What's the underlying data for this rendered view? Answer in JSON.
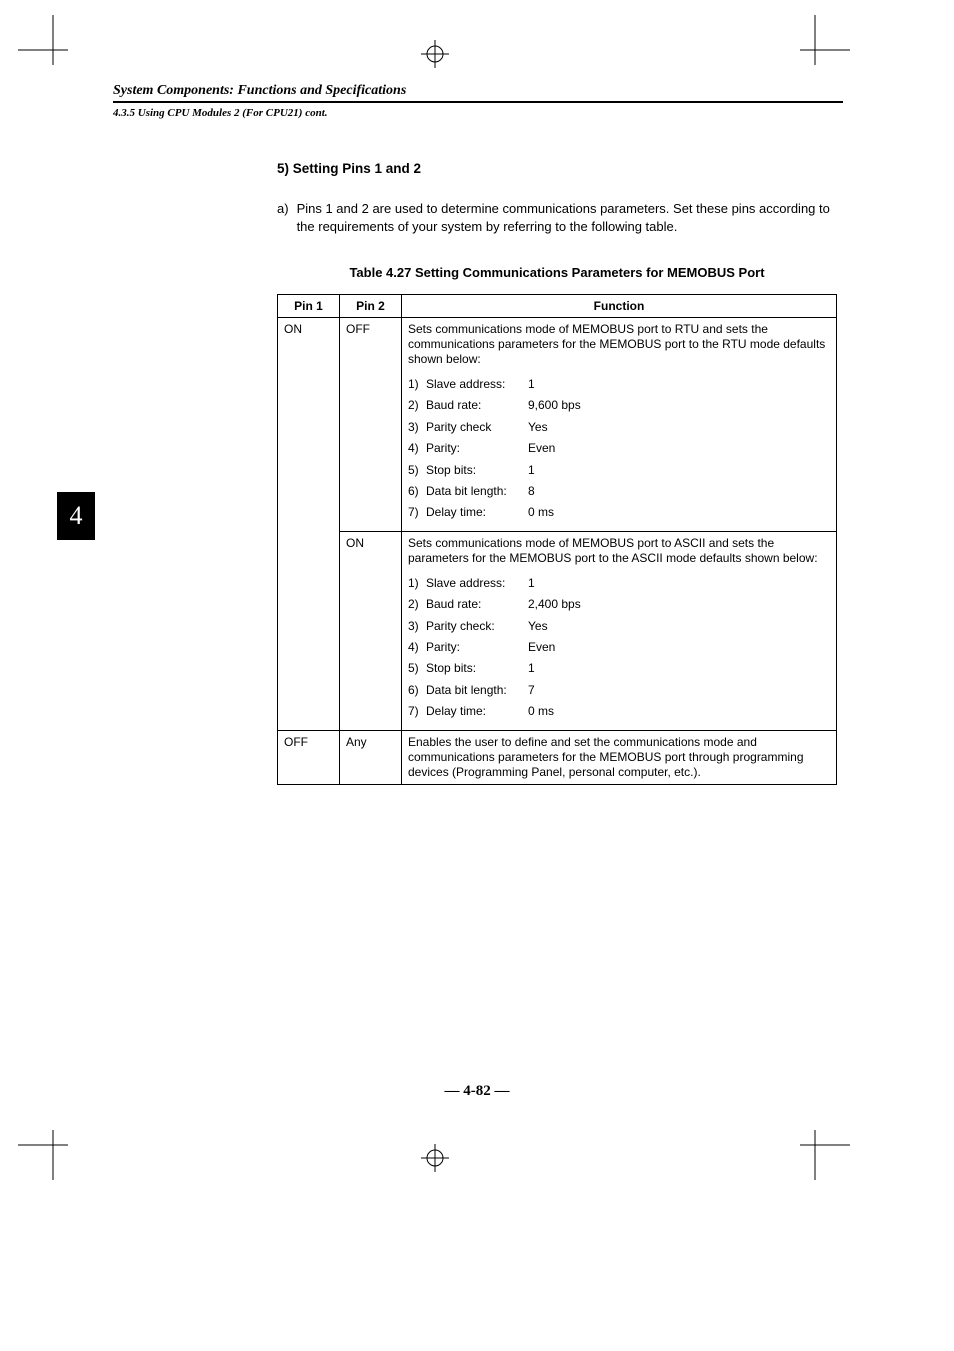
{
  "header": {
    "running_head": "System Components: Functions and Specifications",
    "running_sub": "4.3.5 Using CPU Modules 2 (For CPU21) cont."
  },
  "chapter_tab": "4",
  "section": {
    "heading_label": "5)",
    "heading_text": "Setting Pins 1 and 2",
    "para_label": "a)",
    "para_text": "Pins 1 and 2 are used to determine communications parameters. Set these pins according to the requirements of your system by referring to the following table."
  },
  "table": {
    "caption": "Table 4.27 Setting Communications Parameters for MEMOBUS Port",
    "columns": [
      "Pin 1",
      "Pin 2",
      "Function"
    ],
    "rows": [
      {
        "pin1": "ON",
        "pin2": "OFF",
        "desc": "Sets communications mode of MEMOBUS port to RTU and sets the communications parameters for the MEMOBUS port to the RTU mode defaults shown below:",
        "specs": [
          {
            "n": "1)",
            "label": "Slave address:",
            "val": "1"
          },
          {
            "n": "2)",
            "label": "Baud rate:",
            "val": "9,600 bps"
          },
          {
            "n": "3)",
            "label": "Parity check",
            "val": "Yes"
          },
          {
            "n": "4)",
            "label": "Parity:",
            "val": "Even"
          },
          {
            "n": "5)",
            "label": "Stop bits:",
            "val": "1"
          },
          {
            "n": "6)",
            "label": "Data bit length:",
            "val": "8"
          },
          {
            "n": "7)",
            "label": "Delay time:",
            "val": "0 ms"
          }
        ]
      },
      {
        "pin1": "",
        "pin2": "ON",
        "desc": "Sets communications mode of MEMOBUS port to ASCII and sets the parameters for the MEMOBUS port to the ASCII mode defaults shown below:",
        "specs": [
          {
            "n": "1)",
            "label": "Slave address:",
            "val": "1"
          },
          {
            "n": "2)",
            "label": "Baud rate:",
            "val": "2,400 bps"
          },
          {
            "n": "3)",
            "label": "Parity check:",
            "val": "Yes"
          },
          {
            "n": "4)",
            "label": "Parity:",
            "val": "Even"
          },
          {
            "n": "5)",
            "label": "Stop bits:",
            "val": "1"
          },
          {
            "n": "6)",
            "label": "Data bit length:",
            "val": "7"
          },
          {
            "n": "7)",
            "label": "Delay time:",
            "val": "0 ms"
          }
        ]
      },
      {
        "pin1": "OFF",
        "pin2": "Any",
        "desc": "Enables the user to define and set the communications mode and communications parameters for the MEMOBUS port through programming devices (Programming Panel, personal computer, etc.).",
        "specs": []
      }
    ]
  },
  "footer": {
    "page_number": "— 4-82 —"
  },
  "colors": {
    "text": "#000000",
    "bg": "#ffffff"
  }
}
